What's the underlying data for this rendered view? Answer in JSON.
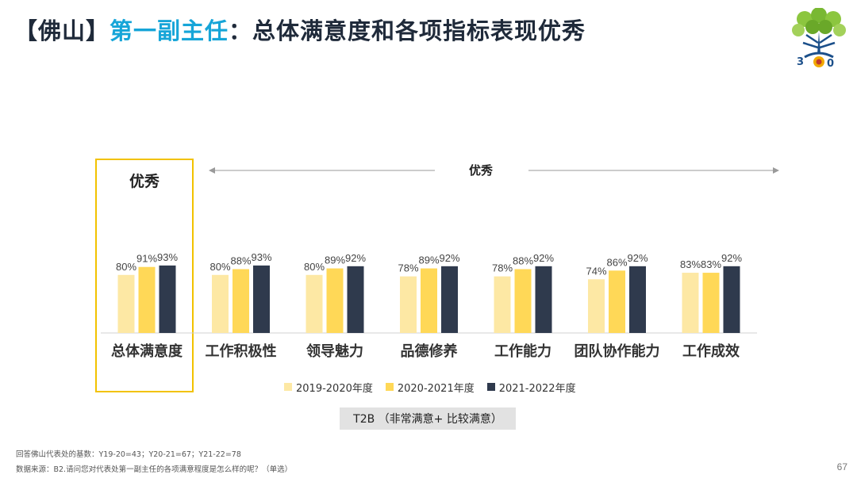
{
  "header": {
    "title_prefix": "【佛山】",
    "title_accent": "第一副主任",
    "title_rest": "：总体满意度和各项指标表现优秀"
  },
  "logo": {
    "icon": "tree-logo-icon",
    "colors": [
      "#8cc63f",
      "#1b4f8a",
      "#f2a900"
    ]
  },
  "highlight": {
    "label": "优秀"
  },
  "range": {
    "label": "优秀"
  },
  "colors": {
    "series1": "#fde8a4",
    "series2": "#ffd857",
    "series3": "#2f3a4d",
    "highlight_border": "#f2c200",
    "title_accent": "#16a5d8"
  },
  "chart_data": {
    "type": "bar",
    "categories": [
      "总体满意度",
      "工作积极性",
      "领导魅力",
      "品德修养",
      "工作能力",
      "团队协作能力",
      "工作成效"
    ],
    "series": [
      {
        "name": "2019-2020年度",
        "values": [
          80,
          80,
          80,
          78,
          78,
          74,
          83
        ],
        "labels": [
          "80%",
          "80%",
          "80%",
          "78%",
          "78%",
          "74%",
          "83%"
        ]
      },
      {
        "name": "2020-2021年度",
        "values": [
          91,
          88,
          89,
          89,
          88,
          86,
          83
        ],
        "labels": [
          "91%",
          "88%",
          "89%",
          "89%",
          "88%",
          "86%",
          "83%"
        ]
      },
      {
        "name": "2021-2022年度",
        "values": [
          93,
          93,
          92,
          92,
          92,
          92,
          92
        ],
        "labels": [
          "93%",
          "93%",
          "92%",
          "92%",
          "92%",
          "92%",
          "92%"
        ]
      }
    ],
    "ylim": [
      0,
      100
    ],
    "title": "",
    "xlabel": "",
    "ylabel": "",
    "legend_position": "bottom",
    "grid": false
  },
  "legend": {
    "items": [
      "2019-2020年度",
      "2020-2021年度",
      "2021-2022年度"
    ]
  },
  "t2b": {
    "label": "T2B （非常满意+ 比较满意）"
  },
  "footer": {
    "base_note": "回答佛山代表处的基数：Y19-20=43；Y20-21=67；Y21-22=78",
    "source_note": "数据来源：B2.请问您对代表处第一副主任的各项满意程度是怎么样的呢？（单选）",
    "page_number": "67"
  }
}
